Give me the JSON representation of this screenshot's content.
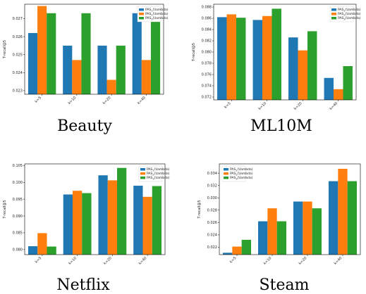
{
  "figure": {
    "captions": [
      "Beauty",
      "ML10M",
      "Netflix",
      "Steam"
    ]
  },
  "chart_data": [
    {
      "type": "bar",
      "dataset": "Beauty",
      "ylabel": "T-recall@5",
      "categories": [
        "k=5",
        "k=10",
        "k=20",
        "k=40"
      ],
      "yticks": [
        "0.023",
        "0.024",
        "0.025",
        "0.026",
        "0.027"
      ],
      "ylim": [
        0.0228,
        0.0278
      ],
      "legend_position": "top-right",
      "series": [
        {
          "name": "PAS$_{1}(\\lambda)$",
          "color": "#1f77b4",
          "values": [
            0.0262,
            0.0255,
            0.0255,
            0.0273
          ]
        },
        {
          "name": "PAS$_{2}(\\lambda)$",
          "color": "#ff7f0e",
          "values": [
            0.0277,
            0.0247,
            0.0236,
            0.0247
          ]
        },
        {
          "name": "PAS$_{3}(\\lambda)$",
          "color": "#2ca02c",
          "values": [
            0.0273,
            0.0273,
            0.0255,
            0.027
          ]
        }
      ]
    },
    {
      "type": "bar",
      "dataset": "ML10M",
      "ylabel": "T-recall@5",
      "categories": [
        "k=5",
        "k=10",
        "k=20",
        "k=40"
      ],
      "yticks": [
        "0.072",
        "0.074",
        "0.076",
        "0.078",
        "0.080",
        "0.082",
        "0.084",
        "0.086",
        "0.088"
      ],
      "ylim": [
        0.0715,
        0.0885
      ],
      "legend_position": "top-right",
      "series": [
        {
          "name": "PAS$_{1}(\\lambda)$",
          "color": "#1f77b4",
          "values": [
            0.0862,
            0.0857,
            0.0826,
            0.0754
          ]
        },
        {
          "name": "PAS$_{2}(\\lambda)$",
          "color": "#ff7f0e",
          "values": [
            0.0867,
            0.0864,
            0.0803,
            0.0734
          ]
        },
        {
          "name": "PAS$_{3}(\\lambda)$",
          "color": "#2ca02c",
          "values": [
            0.0861,
            0.0877,
            0.0837,
            0.0775
          ]
        }
      ]
    },
    {
      "type": "bar",
      "dataset": "Netflix",
      "ylabel": "T-recall@5",
      "categories": [
        "k=5",
        "k=10",
        "k=20",
        "k=40"
      ],
      "yticks": [
        "0.080",
        "0.085",
        "0.090",
        "0.095",
        "0.100",
        "0.105"
      ],
      "ylim": [
        0.0785,
        0.1055
      ],
      "legend_position": "top-right",
      "series": [
        {
          "name": "PAS$_{1}(\\lambda)$",
          "color": "#1f77b4",
          "values": [
            0.081,
            0.0964,
            0.1021,
            0.099
          ]
        },
        {
          "name": "PAS$_{2}(\\lambda)$",
          "color": "#ff7f0e",
          "values": [
            0.0849,
            0.0975,
            0.1006,
            0.0957
          ]
        },
        {
          "name": "PAS$_{3}(\\lambda)$",
          "color": "#2ca02c",
          "values": [
            0.0809,
            0.0968,
            0.1043,
            0.0989
          ]
        }
      ]
    },
    {
      "type": "bar",
      "dataset": "Steam",
      "ylabel": "T-recall@5",
      "categories": [
        "k=5",
        "k=10",
        "k=20",
        "k=40"
      ],
      "yticks": [
        "0.022",
        "0.024",
        "0.026",
        "0.028",
        "0.030",
        "0.032",
        "0.034"
      ],
      "ylim": [
        0.0208,
        0.0355
      ],
      "legend_position": "top-left",
      "series": [
        {
          "name": "PAS$_{1}(\\lambda)$",
          "color": "#1f77b4",
          "values": [
            0.0211,
            0.0262,
            0.0294,
            0.0327
          ]
        },
        {
          "name": "PAS$_{2}(\\lambda)$",
          "color": "#ff7f0e",
          "values": [
            0.0221,
            0.0283,
            0.0294,
            0.0347
          ]
        },
        {
          "name": "PAS$_{3}(\\lambda)$",
          "color": "#2ca02c",
          "values": [
            0.0232,
            0.0262,
            0.0283,
            0.0327
          ]
        }
      ]
    }
  ]
}
